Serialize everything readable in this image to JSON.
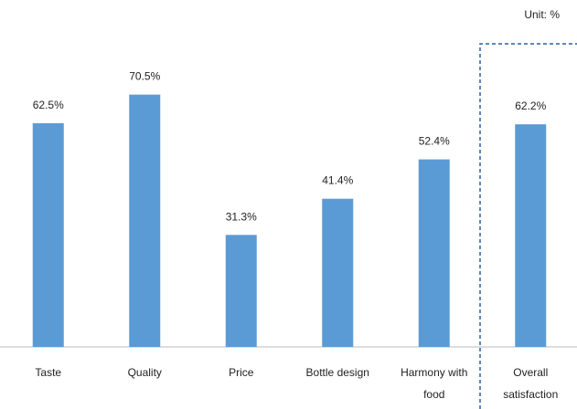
{
  "chart_data": {
    "type": "bar",
    "annotation": "Unit: %",
    "categories": [
      "Taste",
      "Quality",
      "Price",
      "Bottle design",
      "Harmony with food",
      "Overall satisfaction"
    ],
    "values": [
      62.5,
      70.5,
      31.3,
      41.4,
      52.4,
      62.2
    ],
    "value_labels": [
      "62.5%",
      "70.5%",
      "31.3%",
      "41.4%",
      "52.4%",
      "62.2%"
    ],
    "color": "#5b9bd5",
    "ylim": [
      0,
      80
    ]
  }
}
